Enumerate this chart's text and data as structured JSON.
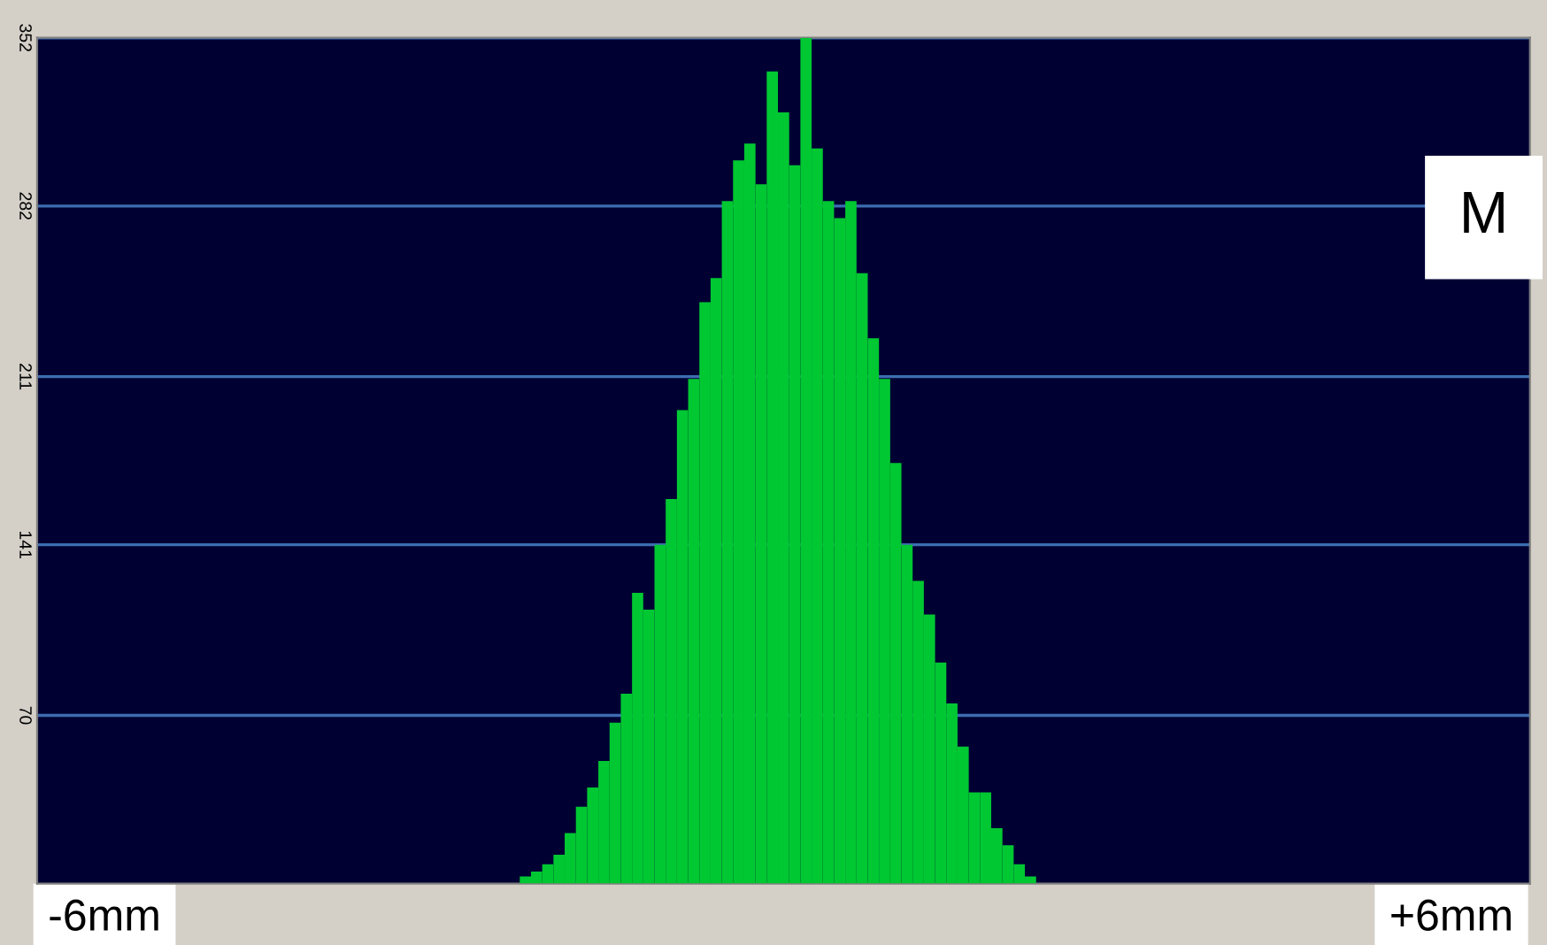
{
  "chart_data": {
    "type": "histogram",
    "bins": [
      -2.3,
      -2.2,
      -2.1,
      -2.0,
      -1.9,
      -1.8,
      -1.7,
      -1.6,
      -1.5,
      -1.4,
      -1.3,
      -1.2,
      -1.1,
      -1.0,
      -0.9,
      -0.8,
      -0.7,
      -0.6,
      -0.5,
      -0.4,
      -0.3,
      -0.2,
      -0.1,
      0.0,
      0.1,
      0.2,
      0.3,
      0.4,
      0.5,
      0.6,
      0.7,
      0.8,
      0.9,
      1.0,
      1.1,
      1.2,
      1.3,
      1.4,
      1.5,
      1.6,
      1.7,
      1.8,
      1.9,
      2.0,
      2.1,
      2.2,
      2.3
    ],
    "values": [
      3,
      5,
      8,
      12,
      21,
      32,
      40,
      51,
      67,
      79,
      121,
      114,
      141,
      160,
      197,
      210,
      242,
      252,
      284,
      301,
      308,
      291,
      338,
      321,
      299,
      352,
      306,
      284,
      277,
      284,
      254,
      227,
      210,
      175,
      141,
      126,
      112,
      92,
      75,
      57,
      38,
      38,
      23,
      16,
      8,
      3
    ],
    "color": "#00c832",
    "xlim": [
      -6.6,
      6.7
    ],
    "xticks": [
      {
        "value": -6,
        "label": "-6mm"
      },
      {
        "value": 6,
        "label": "+6mm"
      }
    ],
    "ylim": [
      0,
      352
    ],
    "yticks": [
      70,
      141,
      211,
      282,
      352
    ],
    "grid": "y",
    "annotations": [
      "M"
    ]
  }
}
